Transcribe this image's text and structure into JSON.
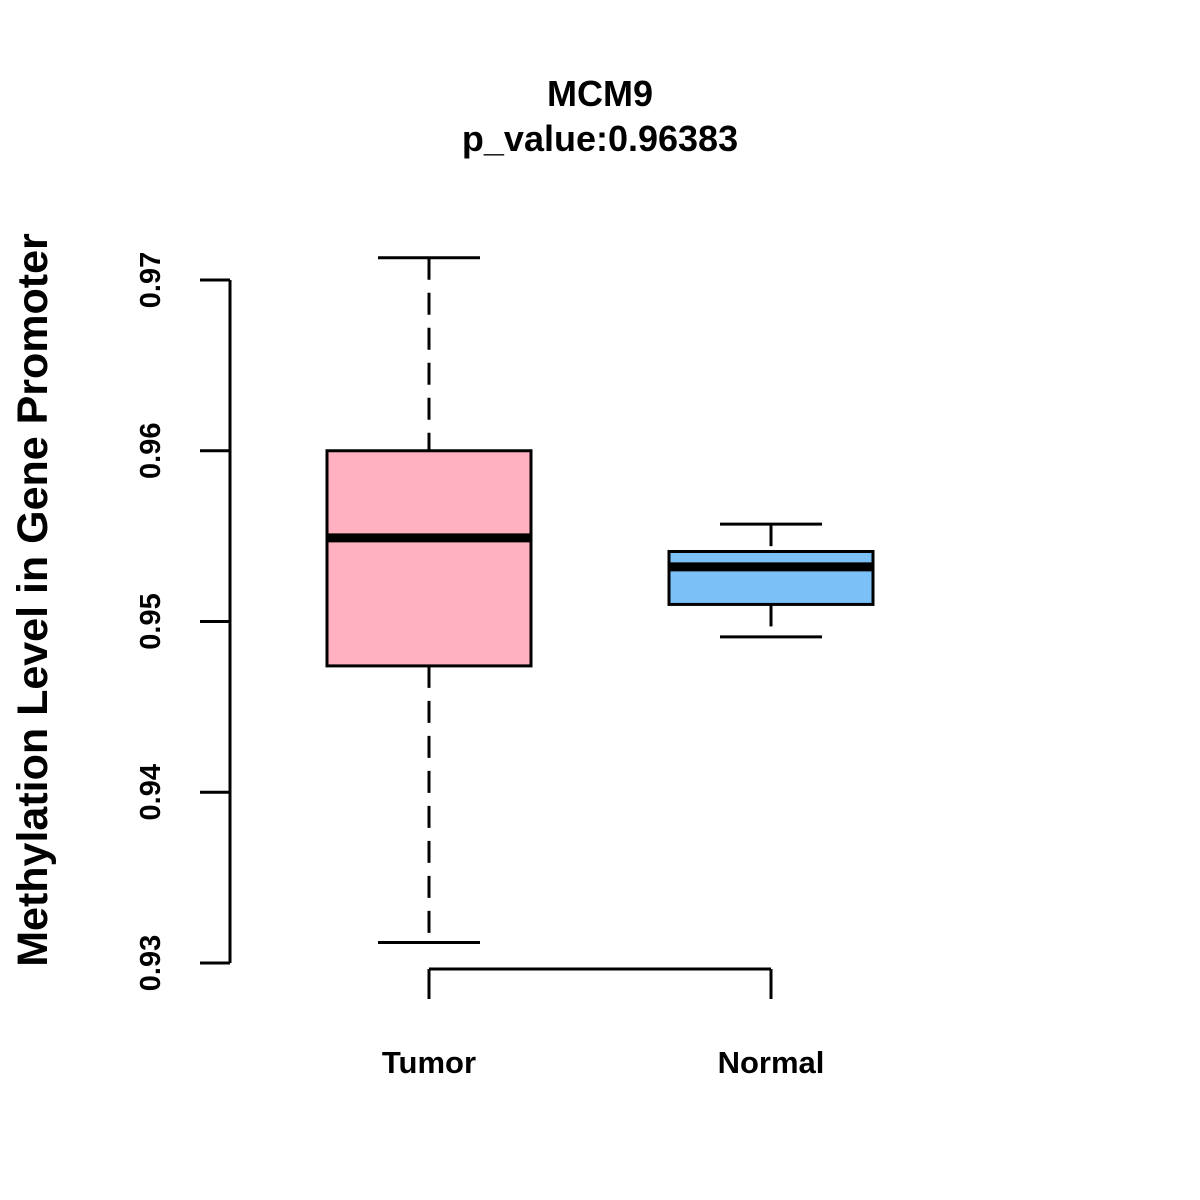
{
  "chart_data": {
    "type": "boxplot",
    "title": "MCM9",
    "subtitle": "p_value:0.96383",
    "xlabel": "",
    "ylabel": "Methylation Level in Gene Promoter",
    "categories": [
      "Tumor",
      "Normal"
    ],
    "ylim": [
      0.93,
      0.97
    ],
    "yticks": [
      0.93,
      0.94,
      0.95,
      0.96,
      0.97
    ],
    "ytick_labels": [
      "0.93",
      "0.94",
      "0.95",
      "0.96",
      "0.97"
    ],
    "grid": false,
    "series": [
      {
        "category": "Tumor",
        "min": 0.9312,
        "q1": 0.9474,
        "median": 0.9549,
        "q3": 0.96,
        "max": 0.9713,
        "color": "#FFB1C1"
      },
      {
        "category": "Normal",
        "min": 0.9491,
        "q1": 0.951,
        "median": 0.9532,
        "q3": 0.9541,
        "max": 0.9557,
        "color": "#7BC0F7"
      }
    ]
  }
}
